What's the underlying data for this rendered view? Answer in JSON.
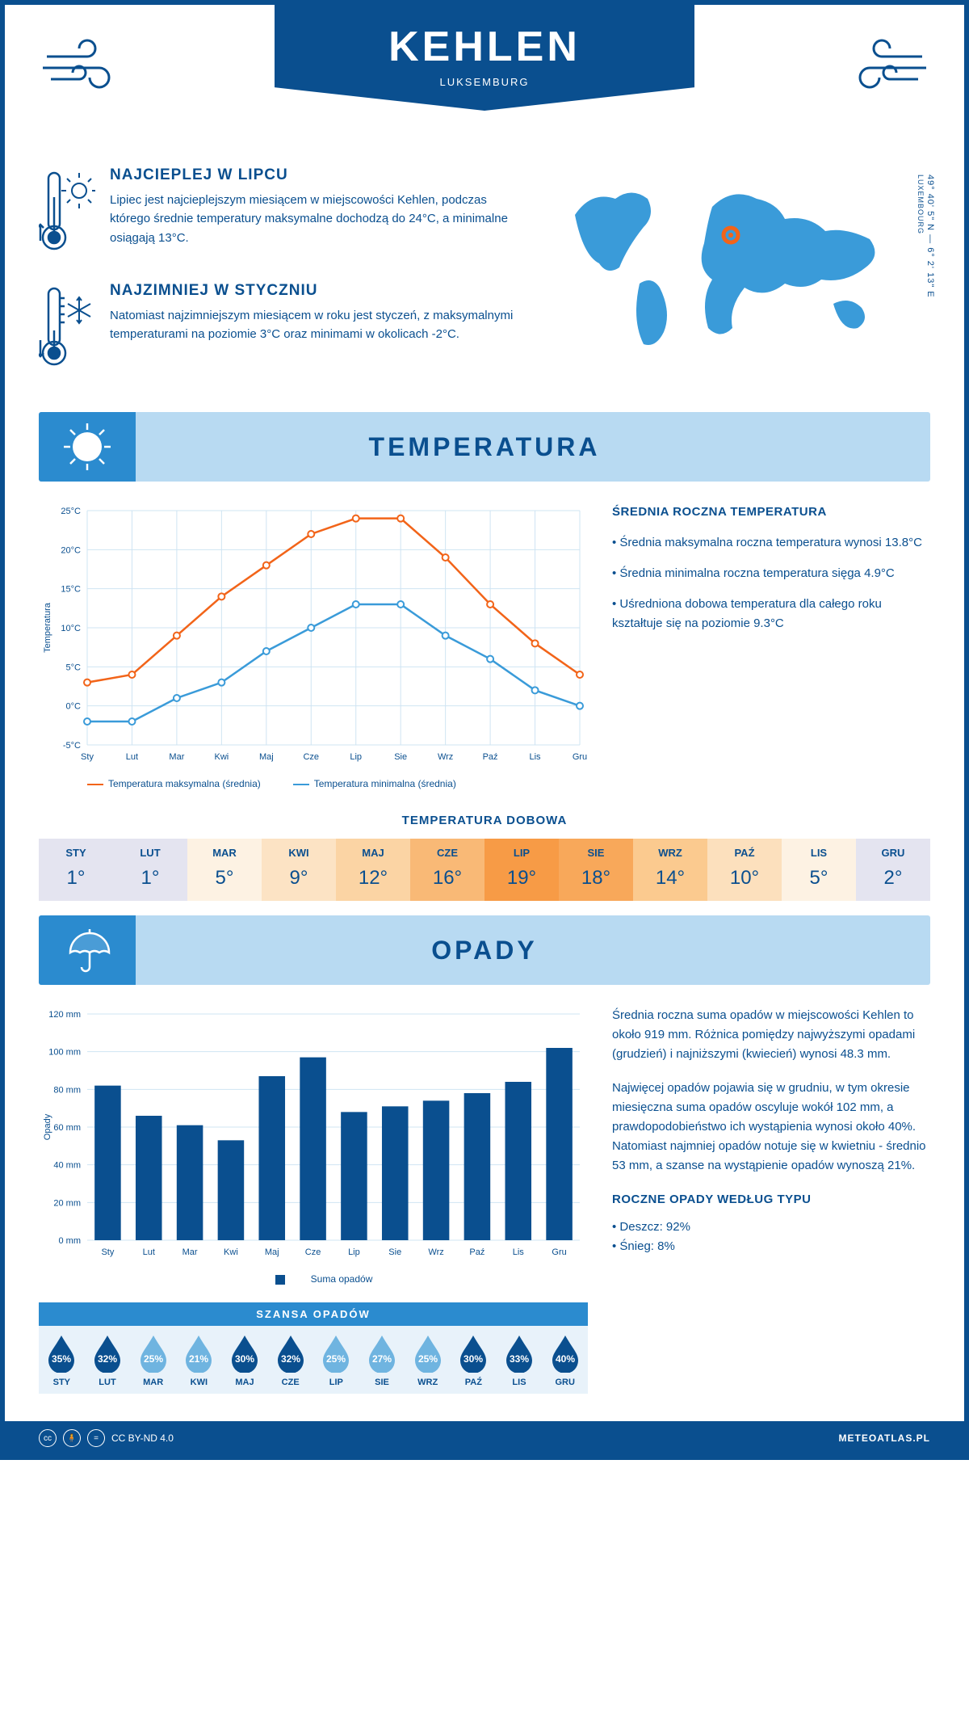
{
  "header": {
    "title": "KEHLEN",
    "subtitle": "LUKSEMBURG"
  },
  "coords": {
    "lat": "49° 40' 5\" N",
    "lon": "6° 2' 13\" E",
    "country": "LUXEMBOURG"
  },
  "facts": {
    "hot": {
      "title": "NAJCIEPLEJ W LIPCU",
      "text": "Lipiec jest najcieplejszym miesiącem w miejscowości Kehlen, podczas którego średnie temperatury maksymalne dochodzą do 24°C, a minimalne osiągają 13°C."
    },
    "cold": {
      "title": "NAJZIMNIEJ W STYCZNIU",
      "text": "Natomiast najzimniejszym miesiącem w roku jest styczeń, z maksymalnymi temperaturami na poziomie 3°C oraz minimami w okolicach -2°C."
    }
  },
  "sections": {
    "temperature": "TEMPERATURA",
    "precipitation": "OPADY"
  },
  "temp_chart": {
    "months": [
      "Sty",
      "Lut",
      "Mar",
      "Kwi",
      "Maj",
      "Cze",
      "Lip",
      "Sie",
      "Wrz",
      "Paź",
      "Lis",
      "Gru"
    ],
    "max": [
      3,
      4,
      9,
      14,
      18,
      22,
      24,
      24,
      19,
      13,
      8,
      4
    ],
    "min": [
      -2,
      -2,
      1,
      3,
      7,
      10,
      13,
      13,
      9,
      6,
      2,
      0
    ],
    "y_min": -5,
    "y_max": 25,
    "y_step": 5,
    "y_labels": [
      "-5°C",
      "0°C",
      "5°C",
      "10°C",
      "15°C",
      "20°C",
      "25°C"
    ],
    "y_axis_title": "Temperatura",
    "color_max": "#f26419",
    "color_min": "#3a9bd9",
    "grid_color": "#cfe4f3",
    "legend_max": "Temperatura maksymalna (średnia)",
    "legend_min": "Temperatura minimalna (średnia)"
  },
  "temp_summary": {
    "title": "ŚREDNIA ROCZNA TEMPERATURA",
    "b1": "• Średnia maksymalna roczna temperatura wynosi 13.8°C",
    "b2": "• Średnia minimalna roczna temperatura sięga 4.9°C",
    "b3": "• Uśredniona dobowa temperatura dla całego roku kształtuje się na poziomie 9.3°C"
  },
  "daily": {
    "title": "TEMPERATURA DOBOWA",
    "months": [
      "STY",
      "LUT",
      "MAR",
      "KWI",
      "MAJ",
      "CZE",
      "LIP",
      "SIE",
      "WRZ",
      "PAŹ",
      "LIS",
      "GRU"
    ],
    "values": [
      "1°",
      "1°",
      "5°",
      "9°",
      "12°",
      "16°",
      "19°",
      "18°",
      "14°",
      "10°",
      "5°",
      "2°"
    ],
    "colors": [
      "#e4e4f0",
      "#e4e4f0",
      "#fdf2e3",
      "#fce3c4",
      "#fbd4a4",
      "#f9b976",
      "#f79b46",
      "#f8a85a",
      "#fbca8f",
      "#fce0bd",
      "#fdf2e3",
      "#e4e4f0"
    ]
  },
  "precip_chart": {
    "months": [
      "Sty",
      "Lut",
      "Mar",
      "Kwi",
      "Maj",
      "Cze",
      "Lip",
      "Sie",
      "Wrz",
      "Paź",
      "Lis",
      "Gru"
    ],
    "values": [
      82,
      66,
      61,
      53,
      87,
      97,
      68,
      71,
      74,
      78,
      84,
      102
    ],
    "y_max": 120,
    "y_step": 20,
    "y_labels": [
      "0 mm",
      "20 mm",
      "40 mm",
      "60 mm",
      "80 mm",
      "100 mm",
      "120 mm"
    ],
    "y_axis_title": "Opady",
    "bar_color": "#0a4f8f",
    "grid_color": "#cfe4f3",
    "legend": "Suma opadów"
  },
  "precip_text": {
    "p1": "Średnia roczna suma opadów w miejscowości Kehlen to około 919 mm. Różnica pomiędzy najwyższymi opadami (grudzień) i najniższymi (kwiecień) wynosi 48.3 mm.",
    "p2": "Najwięcej opadów pojawia się w grudniu, w tym okresie miesięczna suma opadów oscyluje wokół 102 mm, a prawdopodobieństwo ich wystąpienia wynosi około 40%. Natomiast najmniej opadów notuje się w kwietniu - średnio 53 mm, a szanse na wystąpienie opadów wynoszą 21%.",
    "type_title": "ROCZNE OPADY WEDŁUG TYPU",
    "rain": "• Deszcz: 92%",
    "snow": "• Śnieg: 8%"
  },
  "chance": {
    "title": "SZANSA OPADÓW",
    "months": [
      "STY",
      "LUT",
      "MAR",
      "KWI",
      "MAJ",
      "CZE",
      "LIP",
      "SIE",
      "WRZ",
      "PAŹ",
      "LIS",
      "GRU"
    ],
    "pct": [
      "35%",
      "32%",
      "25%",
      "21%",
      "30%",
      "32%",
      "25%",
      "27%",
      "25%",
      "30%",
      "33%",
      "40%"
    ],
    "colors": [
      "#0a4f8f",
      "#0a4f8f",
      "#6fb4e0",
      "#6fb4e0",
      "#0a4f8f",
      "#0a4f8f",
      "#6fb4e0",
      "#6fb4e0",
      "#6fb4e0",
      "#0a4f8f",
      "#0a4f8f",
      "#0a4f8f"
    ]
  },
  "footer": {
    "license": "CC BY-ND 4.0",
    "site": "METEOATLAS.PL"
  }
}
